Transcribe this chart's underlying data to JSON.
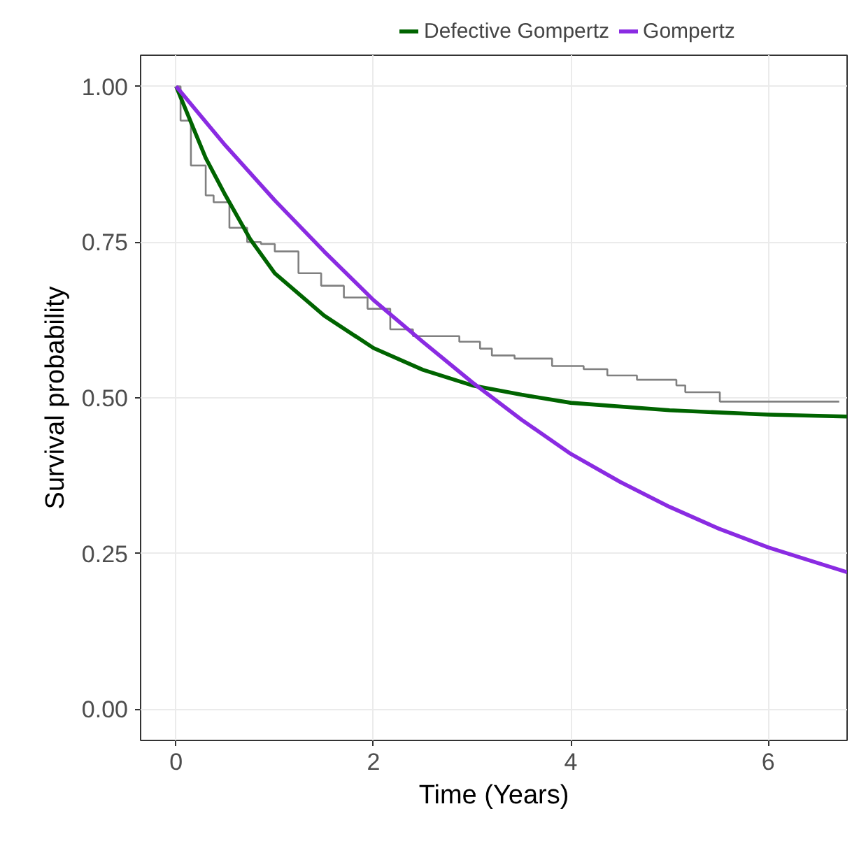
{
  "chart_data": {
    "type": "line",
    "xlabel": "Time (Years)",
    "ylabel": "Survival probability",
    "xlim": [
      -0.36,
      6.8
    ],
    "ylim": [
      -0.05,
      1.05
    ],
    "xticks": [
      0,
      2,
      4,
      6
    ],
    "yticks": [
      {
        "value": 0,
        "label": "0.00"
      },
      {
        "value": 0.25,
        "label": "0.25"
      },
      {
        "value": 0.5,
        "label": "0.50"
      },
      {
        "value": 0.75,
        "label": "0.75"
      },
      {
        "value": 1,
        "label": "1.00"
      }
    ],
    "grid": true,
    "legend": "top",
    "series": [
      {
        "type": "step",
        "color": "#808080",
        "x": [
          0,
          0.045,
          0.15,
          0.3,
          0.38,
          0.54,
          0.72,
          0.86,
          1.0,
          1.24,
          1.47,
          1.7,
          1.94,
          2.17,
          2.4,
          2.87,
          3.08,
          3.2,
          3.43,
          3.81,
          4.13,
          4.37,
          4.67,
          5.07,
          5.16,
          5.51,
          6.72
        ],
        "values": [
          1.0,
          0.945,
          0.873,
          0.825,
          0.814,
          0.773,
          0.75,
          0.747,
          0.735,
          0.7,
          0.68,
          0.661,
          0.643,
          0.61,
          0.599,
          0.59,
          0.579,
          0.568,
          0.563,
          0.551,
          0.546,
          0.536,
          0.529,
          0.52,
          0.509,
          0.494,
          0.494
        ]
      },
      {
        "name": "Defective Gompertz",
        "color": "#006400",
        "x": [
          0,
          0.3,
          0.5,
          0.75,
          1,
          1.5,
          2,
          2.5,
          3,
          3.5,
          4,
          5,
          6,
          6.8
        ],
        "values": [
          1.0,
          0.885,
          0.825,
          0.755,
          0.7,
          0.632,
          0.58,
          0.545,
          0.52,
          0.505,
          0.492,
          0.48,
          0.473,
          0.47
        ]
      },
      {
        "name": "Gompertz",
        "color": "#8a2be2",
        "x": [
          0,
          0.5,
          1,
          1.5,
          2,
          2.5,
          3,
          3.5,
          4,
          4.5,
          5,
          5.5,
          6,
          6.5,
          6.8
        ],
        "values": [
          1.0,
          0.905,
          0.817,
          0.735,
          0.657,
          0.59,
          0.525,
          0.465,
          0.41,
          0.365,
          0.325,
          0.29,
          0.26,
          0.235,
          0.22
        ]
      }
    ]
  }
}
